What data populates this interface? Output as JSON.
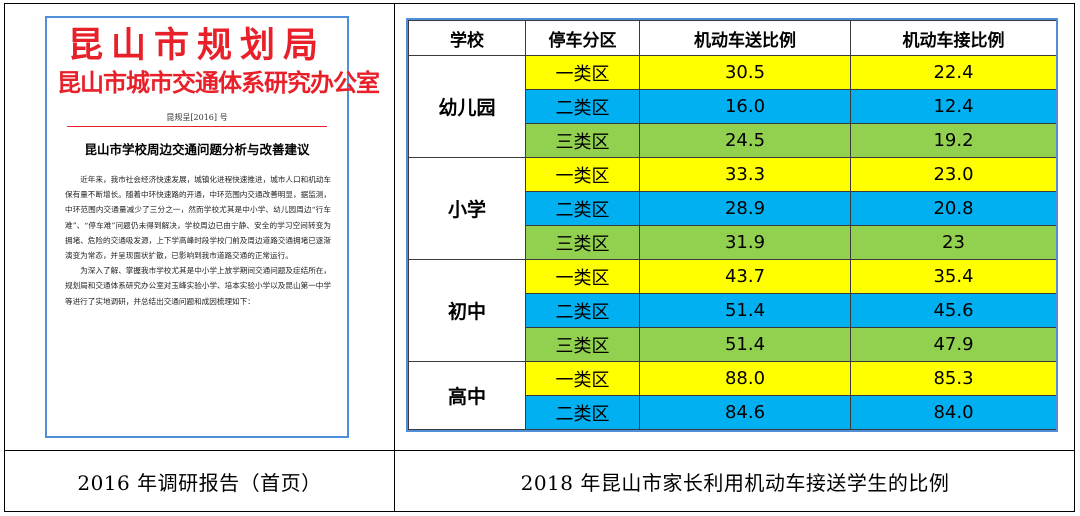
{
  "left_panel": {
    "document": {
      "title_line1": "昆山市规划局",
      "title_line2": "昆山市城市交通体系研究办公室",
      "doc_number": "昆规呈[2016] 号",
      "heading": "昆山市学校周边交通问题分析与改善建议",
      "paragraph1": "近年来，我市社会经济快速发展，城镇化进程快速推进，城市人口和机动车保有量不断增长。随着中环快速路的开通，中环范围内交通改善明显，据监测，中环范围内交通量减少了三分之一，然而学校尤其是中小学、幼儿园周边“行车难”、“停车难”问题仍未得到解决，学校周边已由宁静、安全的学习空间转变为拥堵、危险的交通吸发源，上下学高峰时段学校门前及周边道路交通拥堵已逐渐演变为常态，并呈现面状扩散，已影响到我市道路交通的正常运行。",
      "paragraph2": "为深入了解、掌握我市学校尤其是中小学上放学期间交通问题及症结所在，规划局和交通体系研究办公室对玉峰实验小学、培本实验小学以及昆山第一中学等进行了实地调研，并总结出交通问题和成因梳理如下："
    },
    "caption": "2016 年调研报告（首页）"
  },
  "right_panel": {
    "table": {
      "headers": [
        "学校",
        "停车分区",
        "机动车送比例",
        "机动车接比例"
      ],
      "groups": [
        {
          "school": "幼儿园",
          "rows": [
            {
              "zone": "一类区",
              "drop": "30.5",
              "pick": "22.4"
            },
            {
              "zone": "二类区",
              "drop": "16.0",
              "pick": "12.4"
            },
            {
              "zone": "三类区",
              "drop": "24.5",
              "pick": "19.2"
            }
          ]
        },
        {
          "school": "小学",
          "rows": [
            {
              "zone": "一类区",
              "drop": "33.3",
              "pick": "23.0"
            },
            {
              "zone": "二类区",
              "drop": "28.9",
              "pick": "20.8"
            },
            {
              "zone": "三类区",
              "drop": "31.9",
              "pick": "23"
            }
          ]
        },
        {
          "school": "初中",
          "rows": [
            {
              "zone": "一类区",
              "drop": "43.7",
              "pick": "35.4"
            },
            {
              "zone": "二类区",
              "drop": "51.4",
              "pick": "45.6"
            },
            {
              "zone": "三类区",
              "drop": "51.4",
              "pick": "47.9"
            }
          ]
        },
        {
          "school": "高中",
          "rows": [
            {
              "zone": "一类区",
              "drop": "88.0",
              "pick": "85.3"
            },
            {
              "zone": "二类区",
              "drop": "84.6",
              "pick": "84.0"
            }
          ]
        }
      ],
      "zone_colors": {
        "一类区": "#ffff00",
        "二类区": "#00b0f0",
        "三类区": "#92d050"
      }
    },
    "caption": "2018 年昆山市家长利用机动车接送学生的比例"
  }
}
